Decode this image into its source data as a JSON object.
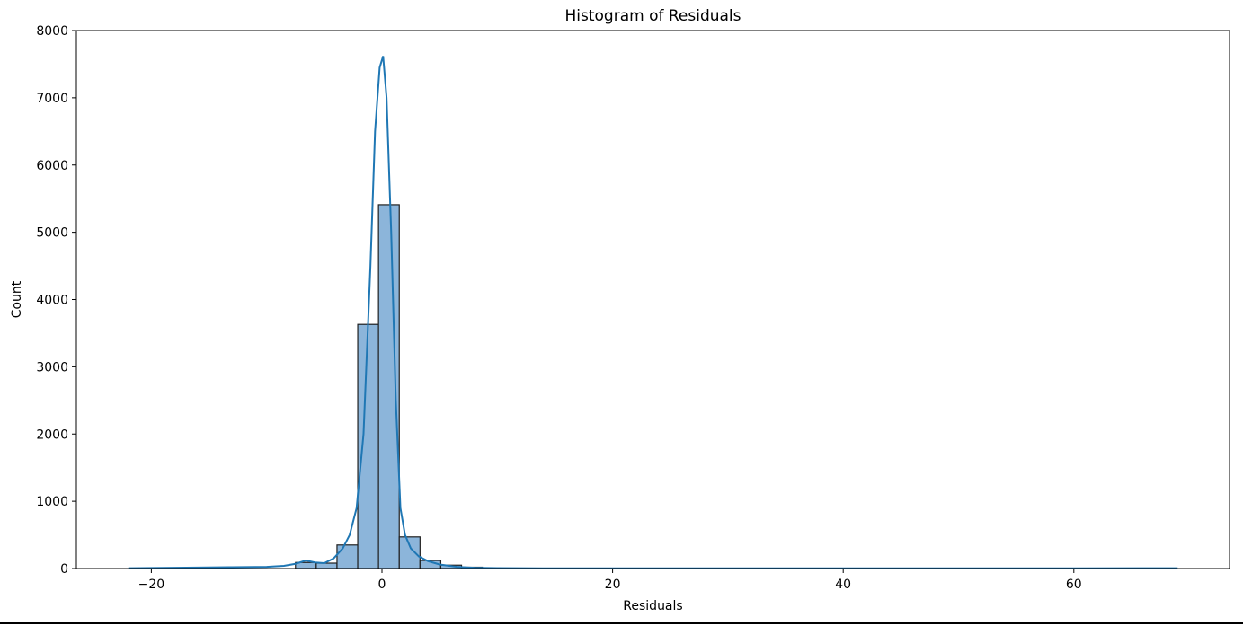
{
  "chart_data": {
    "type": "bar",
    "title": "Histogram of Residuals",
    "xlabel": "Residuals",
    "ylabel": "Count",
    "xlim": [
      -26.5,
      73.5
    ],
    "ylim": [
      0,
      8000
    ],
    "xticks": [
      -20,
      0,
      20,
      40,
      60
    ],
    "xtick_labels": [
      "−20",
      "0",
      "20",
      "40",
      "60"
    ],
    "yticks": [
      0,
      1000,
      2000,
      3000,
      4000,
      5000,
      6000,
      7000,
      8000
    ],
    "ytick_labels": [
      "0",
      "1000",
      "2000",
      "3000",
      "4000",
      "5000",
      "6000",
      "7000",
      "8000"
    ],
    "grid": false,
    "bin_width": 1.8,
    "bars": [
      {
        "x0": -7.5,
        "x1": -5.7,
        "count": 90
      },
      {
        "x0": -5.7,
        "x1": -3.9,
        "count": 80
      },
      {
        "x0": -3.9,
        "x1": -2.1,
        "count": 350
      },
      {
        "x0": -2.1,
        "x1": -0.3,
        "count": 3630
      },
      {
        "x0": -0.3,
        "x1": 1.5,
        "count": 5410
      },
      {
        "x0": 1.5,
        "x1": 3.3,
        "count": 470
      },
      {
        "x0": 3.3,
        "x1": 5.1,
        "count": 120
      },
      {
        "x0": 5.1,
        "x1": 6.9,
        "count": 50
      },
      {
        "x0": 6.9,
        "x1": 8.7,
        "count": 20
      }
    ],
    "kde": {
      "name": "KDE",
      "x": [
        -22,
        -16,
        -13,
        -10,
        -8.5,
        -7.5,
        -6.6,
        -5.8,
        -5.0,
        -4.2,
        -3.4,
        -2.8,
        -2.2,
        -1.6,
        -1.0,
        -0.6,
        -0.2,
        0.1,
        0.4,
        0.8,
        1.2,
        1.6,
        2.0,
        2.5,
        3.2,
        4.0,
        5.0,
        6.5,
        8.0,
        10,
        14,
        20,
        30,
        40,
        50,
        60,
        69
      ],
      "y": [
        5,
        15,
        20,
        25,
        40,
        70,
        120,
        90,
        80,
        150,
        300,
        500,
        900,
        2000,
        4500,
        6500,
        7450,
        7620,
        7000,
        5000,
        2500,
        900,
        500,
        300,
        180,
        110,
        60,
        25,
        12,
        6,
        4,
        3,
        3,
        4,
        3,
        3,
        5
      ]
    },
    "colors": {
      "bar_fill": "#8cb5da",
      "bar_edge": "#1f1f1f",
      "kde_line": "#1f77b4",
      "axes": "#000000"
    }
  }
}
